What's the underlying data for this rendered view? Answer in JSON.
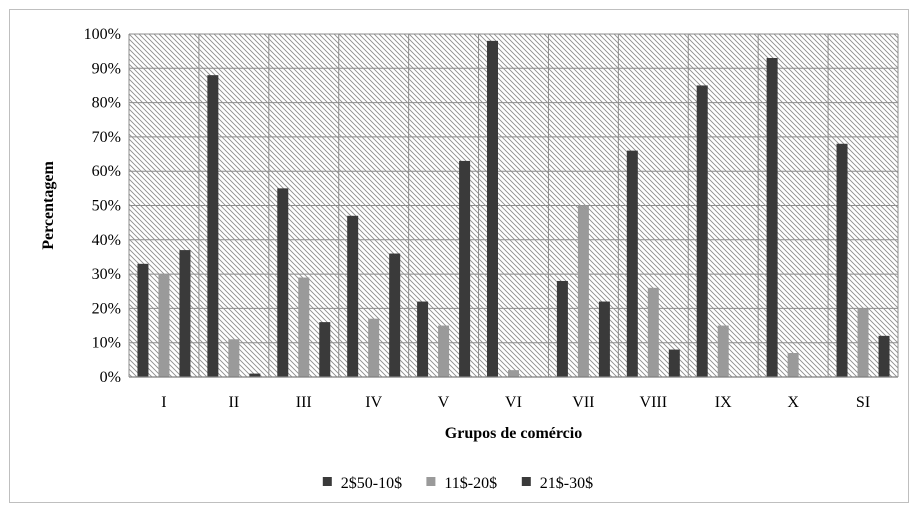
{
  "chart_data": {
    "type": "bar",
    "title": "",
    "xlabel": "Grupos de comércio",
    "ylabel": "Percentagem",
    "ylim": [
      0,
      100
    ],
    "yticks": [
      "0%",
      "10%",
      "20%",
      "30%",
      "40%",
      "50%",
      "60%",
      "70%",
      "80%",
      "90%",
      "100%"
    ],
    "categories": [
      "I",
      "II",
      "III",
      "IV",
      "V",
      "VI",
      "VII",
      "VIII",
      "IX",
      "X",
      "SI"
    ],
    "series": [
      {
        "name": "2$50-10$",
        "color": "#3a3a3a",
        "values": [
          33,
          88,
          55,
          47,
          22,
          98,
          28,
          66,
          85,
          93,
          68
        ]
      },
      {
        "name": "11$-20$",
        "color": "#9a9a9a",
        "values": [
          30,
          11,
          29,
          17,
          15,
          2,
          50,
          26,
          15,
          7,
          20
        ]
      },
      {
        "name": "21$-30$",
        "color": "#3a3a3a",
        "values": [
          37,
          1,
          16,
          36,
          63,
          0,
          22,
          8,
          0,
          0,
          12
        ]
      }
    ],
    "grid": true,
    "legend_position": "bottom",
    "plot_background": "hatched"
  }
}
